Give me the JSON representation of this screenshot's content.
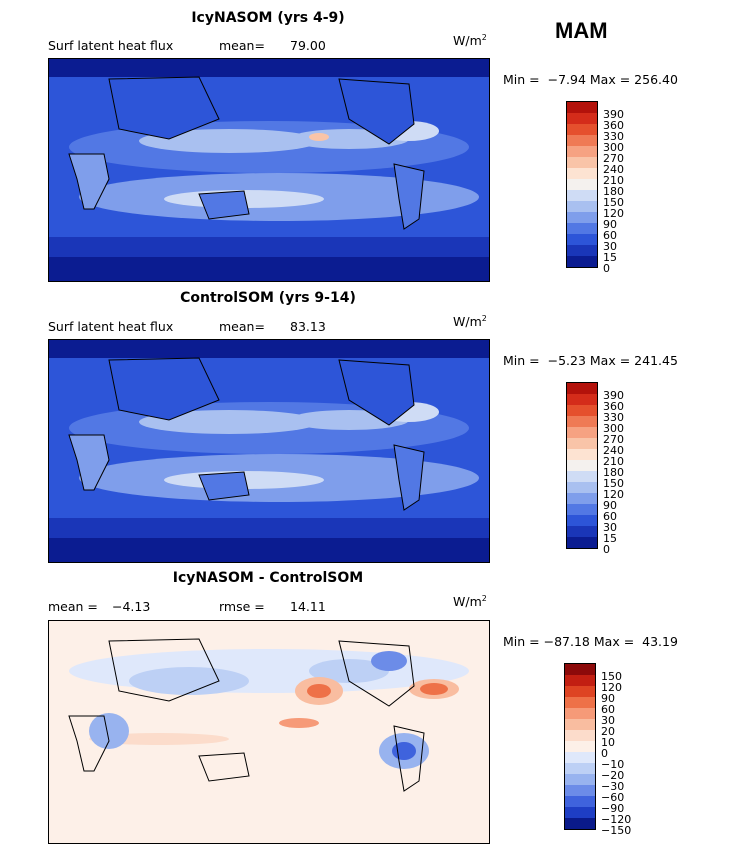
{
  "season": "MAM",
  "panels": [
    {
      "title": "IcyNASOM (yrs 4-9)",
      "left_label": "Surf latent heat flux",
      "stat_label": "mean=",
      "stat_value": "79.00",
      "unit": "W/m",
      "unit_exp": "2",
      "min_label": "Min =",
      "min_value": "−7.94",
      "max_label": "Max =",
      "max_value": "256.40",
      "colorbar_ticks": [
        "390",
        "360",
        "330",
        "300",
        "270",
        "240",
        "210",
        "180",
        "150",
        "120",
        "90",
        "60",
        "30",
        "15",
        "0"
      ],
      "colorbar_colors": [
        "#b3120b",
        "#d42c1a",
        "#e5502d",
        "#ef7a55",
        "#f6a282",
        "#f9c4a8",
        "#fde3d2",
        "#f4f1ee",
        "#cfdcf5",
        "#a9c0f0",
        "#7f9eeb",
        "#5278e4",
        "#2d55d8",
        "#1a36b8",
        "#0b1c91"
      ]
    },
    {
      "title": "ControlSOM (yrs 9-14)",
      "left_label": "Surf latent heat flux",
      "stat_label": "mean=",
      "stat_value": "83.13",
      "unit": "W/m",
      "unit_exp": "2",
      "min_label": "Min =",
      "min_value": "−5.23",
      "max_label": "Max =",
      "max_value": "241.45",
      "colorbar_ticks": [
        "390",
        "360",
        "330",
        "300",
        "270",
        "240",
        "210",
        "180",
        "150",
        "120",
        "90",
        "60",
        "30",
        "15",
        "0"
      ],
      "colorbar_colors": [
        "#b3120b",
        "#d42c1a",
        "#e5502d",
        "#ef7a55",
        "#f6a282",
        "#f9c4a8",
        "#fde3d2",
        "#f4f1ee",
        "#cfdcf5",
        "#a9c0f0",
        "#7f9eeb",
        "#5278e4",
        "#2d55d8",
        "#1a36b8",
        "#0b1c91"
      ]
    },
    {
      "title": "IcyNASOM - ControlSOM",
      "left_label": "mean =",
      "left_value": "−4.13",
      "stat_label": "rmse =",
      "stat_value": "14.11",
      "unit": "W/m",
      "unit_exp": "2",
      "min_label": "Min =",
      "min_value": "−87.18",
      "max_label": "Max =",
      "max_value": "43.19",
      "colorbar_ticks": [
        "150",
        "120",
        "90",
        "60",
        "30",
        "20",
        "10",
        "0",
        "−10",
        "−20",
        "−30",
        "−60",
        "−90",
        "−120",
        "−150"
      ],
      "colorbar_colors": [
        "#8c0a0a",
        "#c21f12",
        "#de4423",
        "#ee7148",
        "#f69a78",
        "#f9bda0",
        "#fcdccb",
        "#fdf0e8",
        "#dfe8fb",
        "#bdd0f5",
        "#98b3ef",
        "#6c8ce8",
        "#3f63dd",
        "#1e3ec4",
        "#0a1a8a"
      ]
    }
  ]
}
